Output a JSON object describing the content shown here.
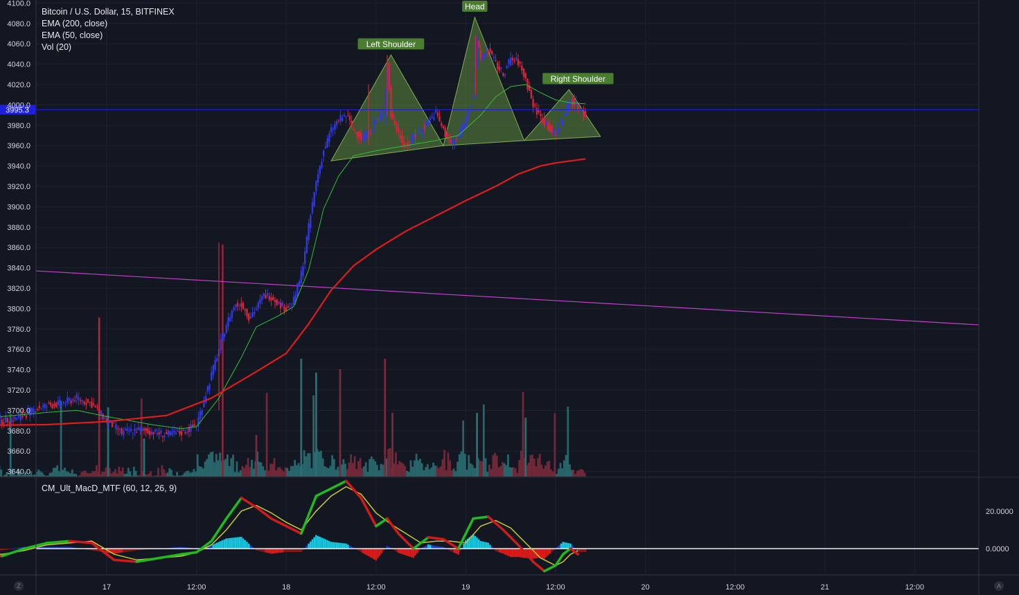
{
  "legend": {
    "symbol": "Bitcoin / U.S. Dollar, 15, BITFINEX",
    "ema200": "EMA (200, close)",
    "ema50": "EMA (50, close)",
    "vol": "Vol (20)"
  },
  "macd_legend": "CM_Ult_MacD_MTF (60, 12, 26, 9)",
  "bottom_left_button": "Z",
  "bottom_right_button": "A",
  "chart_data": {
    "type": "candlestick",
    "price_axis": {
      "ticks": [
        "4100.0",
        "4080.0",
        "4060.0",
        "4040.0",
        "4020.0",
        "4000.0",
        "3980.0",
        "3960.0",
        "3940.0",
        "3920.0",
        "3900.0",
        "3880.0",
        "3860.0",
        "3840.0",
        "3820.0",
        "3800.0",
        "3780.0",
        "3760.0",
        "3740.0",
        "3720.0",
        "3700.0",
        "3680.0",
        "3660.0",
        "3640.0"
      ],
      "ylim": [
        3635,
        4103
      ]
    },
    "last_price": "3995.3",
    "time_axis": {
      "ticks": [
        "17",
        "12:00",
        "18",
        "12:00",
        "19",
        "12:00",
        "20",
        "12:00",
        "21",
        "12:00"
      ],
      "xlim_hours": [
        -20.6,
        85.3
      ]
    },
    "price_path": [
      [
        -20,
        3700
      ],
      [
        -16,
        3688
      ],
      [
        -12,
        3692
      ],
      [
        -9,
        3703
      ],
      [
        -6,
        3707
      ],
      [
        -4,
        3712
      ],
      [
        -2,
        3706
      ],
      [
        0,
        3690
      ],
      [
        2,
        3678
      ],
      [
        4,
        3681
      ],
      [
        6,
        3679
      ],
      [
        8,
        3676
      ],
      [
        10,
        3678
      ],
      [
        12,
        3686
      ],
      [
        13,
        3710
      ],
      [
        14,
        3735
      ],
      [
        15,
        3760
      ],
      [
        16,
        3785
      ],
      [
        17,
        3802
      ],
      [
        18,
        3805
      ],
      [
        19,
        3792
      ],
      [
        20,
        3800
      ],
      [
        21,
        3813
      ],
      [
        22,
        3812
      ],
      [
        23,
        3805
      ],
      [
        24,
        3800
      ],
      [
        25,
        3808
      ],
      [
        26,
        3834
      ],
      [
        27,
        3880
      ],
      [
        28,
        3925
      ],
      [
        29,
        3955
      ],
      [
        30,
        3975
      ],
      [
        31,
        3985
      ],
      [
        32,
        3990
      ],
      [
        33,
        3975
      ],
      [
        34,
        3968
      ],
      [
        35,
        3972
      ],
      [
        36,
        3985
      ],
      [
        37,
        3990
      ],
      [
        37.5,
        4040
      ],
      [
        38,
        3990
      ],
      [
        39,
        3972
      ],
      [
        40,
        3960
      ],
      [
        41,
        3968
      ],
      [
        42,
        3975
      ],
      [
        43,
        3985
      ],
      [
        44,
        3992
      ],
      [
        45,
        3975
      ],
      [
        46,
        3962
      ],
      [
        47,
        3970
      ],
      [
        48,
        3985
      ],
      [
        49,
        4010
      ],
      [
        49.5,
        4060
      ],
      [
        50,
        4045
      ],
      [
        51,
        4055
      ],
      [
        52,
        4040
      ],
      [
        53,
        4030
      ],
      [
        54,
        4045
      ],
      [
        55,
        4042
      ],
      [
        56,
        4025
      ],
      [
        57,
        4000
      ],
      [
        58,
        3988
      ],
      [
        59,
        3978
      ],
      [
        60,
        3970
      ],
      [
        61,
        3988
      ],
      [
        62,
        4005
      ],
      [
        63,
        3998
      ],
      [
        64,
        3990
      ]
    ],
    "candle_interval_minutes": 15,
    "ema_200": [
      [
        -20,
        3685
      ],
      [
        -8,
        3686
      ],
      [
        0,
        3689
      ],
      [
        8,
        3695
      ],
      [
        14,
        3712
      ],
      [
        20,
        3738
      ],
      [
        24,
        3756
      ],
      [
        27,
        3785
      ],
      [
        30,
        3818
      ],
      [
        33,
        3842
      ],
      [
        36,
        3858
      ],
      [
        40,
        3876
      ],
      [
        44,
        3891
      ],
      [
        48,
        3906
      ],
      [
        52,
        3920
      ],
      [
        55,
        3932
      ],
      [
        58,
        3940
      ],
      [
        60,
        3943
      ],
      [
        62,
        3945
      ],
      [
        64,
        3947
      ]
    ],
    "ema_50": [
      [
        -20,
        3700
      ],
      [
        -14,
        3694
      ],
      [
        -8,
        3698
      ],
      [
        -4,
        3700
      ],
      [
        0,
        3694
      ],
      [
        6,
        3686
      ],
      [
        10,
        3682
      ],
      [
        12,
        3684
      ],
      [
        15,
        3712
      ],
      [
        18,
        3752
      ],
      [
        20,
        3782
      ],
      [
        23,
        3793
      ],
      [
        25,
        3802
      ],
      [
        27,
        3838
      ],
      [
        29,
        3898
      ],
      [
        31,
        3930
      ],
      [
        33,
        3950
      ],
      [
        36,
        3955
      ],
      [
        40,
        3960
      ],
      [
        44,
        3965
      ],
      [
        47,
        3970
      ],
      [
        50,
        3990
      ],
      [
        52,
        4008
      ],
      [
        54,
        4018
      ],
      [
        56,
        4020
      ],
      [
        58,
        4012
      ],
      [
        60,
        4005
      ],
      [
        62,
        4002
      ],
      [
        64,
        4001
      ]
    ],
    "trendline": {
      "start": [
        -20.6,
        3837
      ],
      "end": [
        85.3,
        3784
      ]
    },
    "head_and_shoulders": {
      "labels": [
        "Left Shoulder",
        "Head",
        "Right Shoulder"
      ],
      "triangles": [
        [
          [
            30,
            3945
          ],
          [
            38,
            4049
          ],
          [
            45,
            3960
          ]
        ],
        [
          [
            45,
            3960
          ],
          [
            49.2,
            4086
          ],
          [
            55.8,
            3965
          ]
        ],
        [
          [
            55.8,
            3965
          ],
          [
            61.8,
            4015
          ],
          [
            66.0,
            3969
          ]
        ]
      ]
    },
    "volume": {
      "approx_spikes_hours": [
        [
          -1,
          3672
        ],
        [
          16,
          3690
        ],
        [
          26,
          3694
        ],
        [
          32,
          3698
        ],
        [
          37,
          3665
        ],
        [
          55,
          3700
        ],
        [
          62,
          3725
        ]
      ]
    },
    "macd": {
      "zero_label": "0.0000",
      "tick_label": "20.0000",
      "ylim": [
        -14,
        38
      ],
      "macd_line": [
        [
          -20,
          2
        ],
        [
          -17,
          -3
        ],
        [
          -14,
          -4
        ],
        [
          -11,
          0
        ],
        [
          -8,
          3
        ],
        [
          -5,
          4
        ],
        [
          -2,
          3
        ],
        [
          1,
          -6
        ],
        [
          4,
          -7
        ],
        [
          7,
          -5
        ],
        [
          10,
          -3
        ],
        [
          12,
          -2
        ],
        [
          14,
          4
        ],
        [
          16,
          16
        ],
        [
          18,
          27
        ],
        [
          20,
          22
        ],
        [
          22,
          16
        ],
        [
          24,
          12
        ],
        [
          26,
          8
        ],
        [
          28,
          28
        ],
        [
          30,
          32
        ],
        [
          32,
          36
        ],
        [
          34,
          27
        ],
        [
          36,
          12
        ],
        [
          37.5,
          16
        ],
        [
          39,
          8
        ],
        [
          41,
          0
        ],
        [
          43,
          6
        ],
        [
          45,
          5
        ],
        [
          47,
          0
        ],
        [
          49,
          16
        ],
        [
          51,
          17
        ],
        [
          53,
          10
        ],
        [
          55,
          2
        ],
        [
          57,
          -7
        ],
        [
          58.5,
          -12
        ],
        [
          60,
          -9
        ],
        [
          61,
          -3
        ],
        [
          62,
          0
        ],
        [
          63,
          -3
        ]
      ],
      "signal_line": [
        [
          -20,
          1
        ],
        [
          -17,
          -2
        ],
        [
          -14,
          -3
        ],
        [
          -11,
          -1
        ],
        [
          -8,
          2
        ],
        [
          -5,
          3
        ],
        [
          -2,
          4
        ],
        [
          1,
          -3
        ],
        [
          4,
          -6
        ],
        [
          7,
          -5
        ],
        [
          10,
          -4
        ],
        [
          12,
          -2
        ],
        [
          14,
          2
        ],
        [
          16,
          10
        ],
        [
          18,
          20
        ],
        [
          20,
          23
        ],
        [
          22,
          19
        ],
        [
          24,
          14
        ],
        [
          26,
          10
        ],
        [
          28,
          20
        ],
        [
          30,
          28
        ],
        [
          32,
          33
        ],
        [
          34,
          29
        ],
        [
          36,
          19
        ],
        [
          38,
          13
        ],
        [
          40,
          8
        ],
        [
          42,
          3
        ],
        [
          44,
          4
        ],
        [
          46,
          4
        ],
        [
          48,
          3
        ],
        [
          50,
          12
        ],
        [
          52,
          15
        ],
        [
          54,
          11
        ],
        [
          56,
          3
        ],
        [
          58,
          -5
        ],
        [
          60,
          -9
        ],
        [
          61,
          -7
        ],
        [
          62,
          -3
        ],
        [
          63,
          -1
        ]
      ]
    }
  },
  "colors": {
    "background": "#131722",
    "grid": "#1e2230",
    "up": "#3039e0",
    "down": "#d8243a",
    "ema200": "#e31b1b",
    "ema50": "#2fbf3a",
    "trendline": "#c43fcb",
    "pattern_fill": "#5f8a3e",
    "pattern_stroke": "#7fae52",
    "last_price": "#1f1fe0",
    "macd_green": "#1fbb1f",
    "macd_red": "#d11a1a",
    "signal": "#c8c832"
  }
}
